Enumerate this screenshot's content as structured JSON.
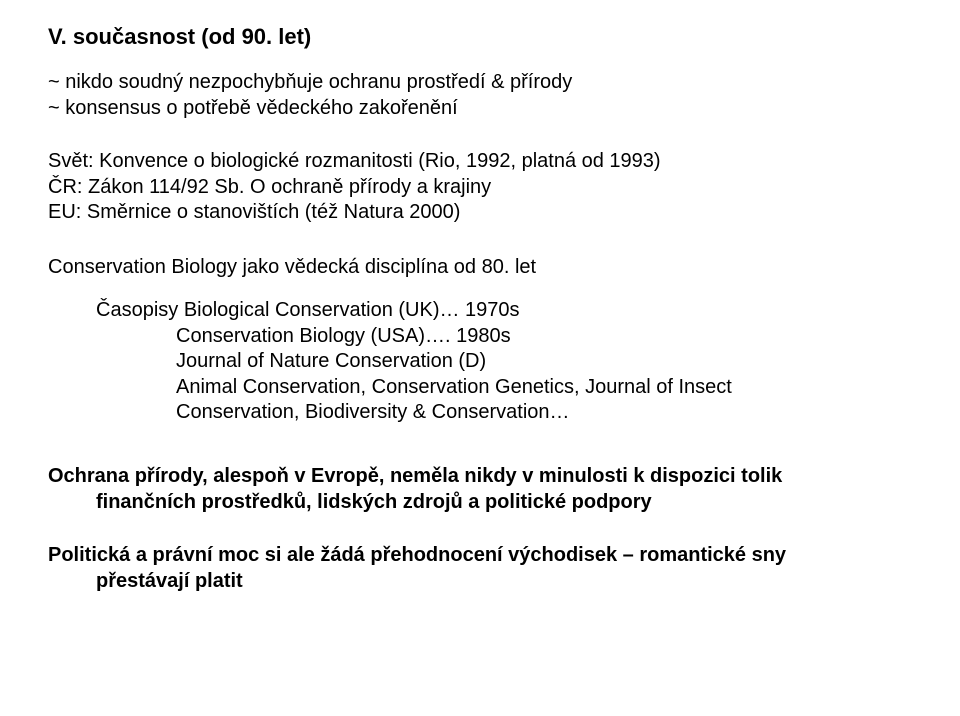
{
  "title": "V. současnost (od 90. let)",
  "p1_l1": "~ nikdo soudný nezpochybňuje ochranu prostředí & přírody",
  "p1_l2": "~ konsensus o potřebě vědeckého zakořenění",
  "p2_l1": "Svět: Konvence o biologické rozmanitosti (Rio, 1992, platná od 1993)",
  "p2_l2": "ČR: Zákon 114/92 Sb. O ochraně přírody a krajiny",
  "p2_l3": "EU: Směrnice o stanovištích (též Natura 2000)",
  "p3": "Conservation Biology jako vědecká disciplína od 80. let",
  "p4_l1": "Časopisy Biological Conservation (UK)… 1970s",
  "p4_l2": "Conservation Biology (USA)…. 1980s",
  "p4_l3": "Journal of Nature Conservation (D)",
  "p4_l4": "Animal Conservation, Conservation Genetics, Journal of Insect",
  "p4_l5": "Conservation, Biodiversity & Conservation…",
  "p5_l1": "Ochrana přírody, alespoň v Evropě, neměla nikdy v minulosti k dispozici tolik",
  "p5_l2": "finančních prostředků, lidských zdrojů a politické podpory",
  "p6_l1": "Politická a právní moc si ale žádá přehodnocení východisek – romantické sny",
  "p6_l2": "přestávají platit",
  "colors": {
    "text": "#000000",
    "background": "#ffffff"
  },
  "fonts": {
    "family": "Arial, Helvetica, sans-serif",
    "title_size": 22,
    "body_size": 20,
    "title_weight": "bold",
    "bold_weight": "bold"
  }
}
